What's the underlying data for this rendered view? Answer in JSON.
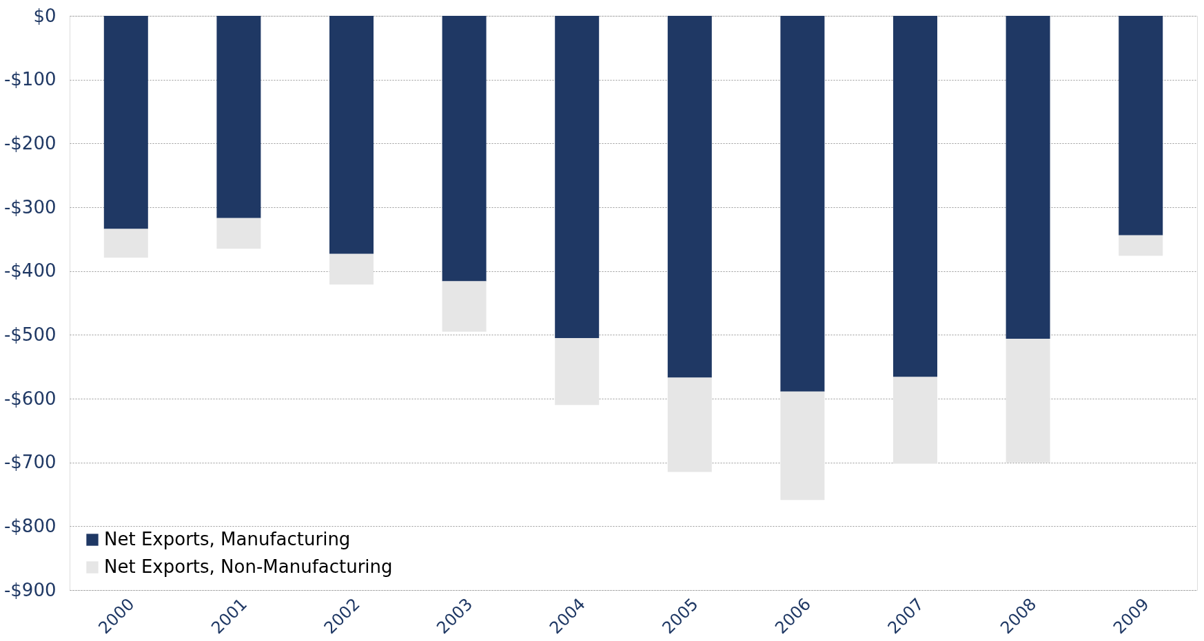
{
  "chart_data": {
    "type": "bar",
    "stacked": true,
    "categories": [
      "2000",
      "2001",
      "2002",
      "2003",
      "2004",
      "2005",
      "2006",
      "2007",
      "2008",
      "2009"
    ],
    "series": [
      {
        "name": "Net Exports, Manufacturing",
        "color": "#1f3864",
        "values": [
          -334,
          -317,
          -373,
          -416,
          -505,
          -567,
          -589,
          -566,
          -506,
          -344
        ]
      },
      {
        "name": "Net Exports, Non-Manufacturing",
        "color": "#e6e6e6",
        "values": [
          -45,
          -48,
          -48,
          -79,
          -105,
          -148,
          -170,
          -136,
          -194,
          -32
        ]
      }
    ],
    "ylim": [
      -900,
      0
    ],
    "yticks": [
      {
        "value": 0,
        "label": "$0"
      },
      {
        "value": -100,
        "label": "-$100"
      },
      {
        "value": -200,
        "label": "-$200"
      },
      {
        "value": -300,
        "label": "-$300"
      },
      {
        "value": -400,
        "label": "-$400"
      },
      {
        "value": -500,
        "label": "-$500"
      },
      {
        "value": -600,
        "label": "-$600"
      },
      {
        "value": -700,
        "label": "-$700"
      },
      {
        "value": -800,
        "label": "-$800"
      },
      {
        "value": -900,
        "label": "-$900"
      }
    ],
    "grid": "y",
    "legend": "bottom left"
  }
}
